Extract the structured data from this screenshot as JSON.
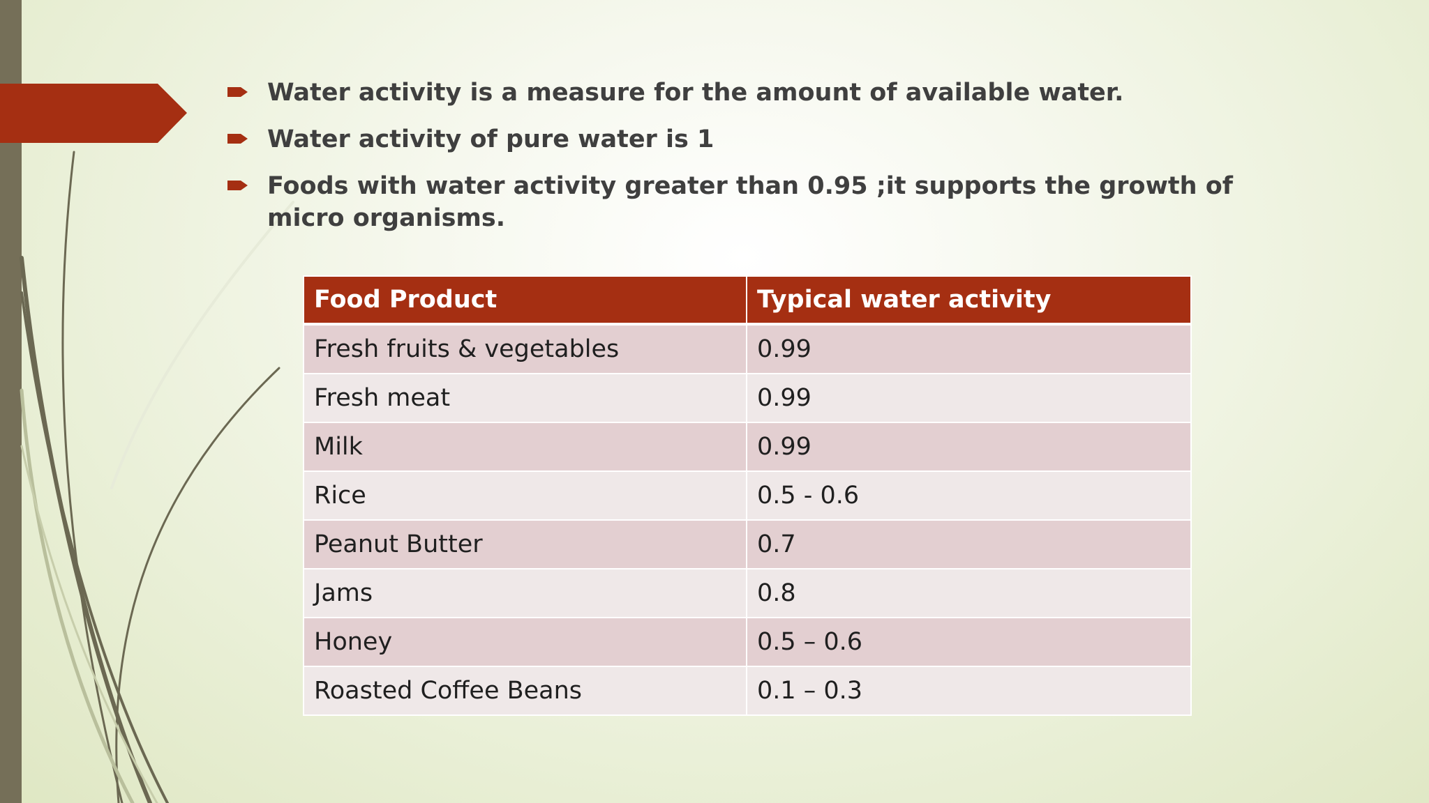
{
  "slide": {
    "bullets": [
      "Water activity is a measure for the amount of available water.",
      "Water activity of pure water is 1",
      "Foods with water activity greater than 0.95 ;it supports the growth of micro organisms."
    ]
  },
  "table": {
    "headers": [
      "Food Product",
      "Typical water activity"
    ],
    "rows": [
      [
        "Fresh fruits & vegetables",
        "0.99"
      ],
      [
        "Fresh meat",
        "0.99"
      ],
      [
        "Milk",
        "0.99"
      ],
      [
        "Rice",
        "0.5 - 0.6"
      ],
      [
        "Peanut Butter",
        "0.7"
      ],
      [
        "Jams",
        "0.8"
      ],
      [
        "Honey",
        "0.5 – 0.6"
      ],
      [
        "Roasted Coffee Beans",
        "0.1 – 0.3"
      ]
    ]
  },
  "colors": {
    "accent": "#a52f12",
    "header_text": "#ffffff",
    "row_dark": "#e3cfd1",
    "row_light": "#efe8e8",
    "left_bar": "#756f58"
  }
}
